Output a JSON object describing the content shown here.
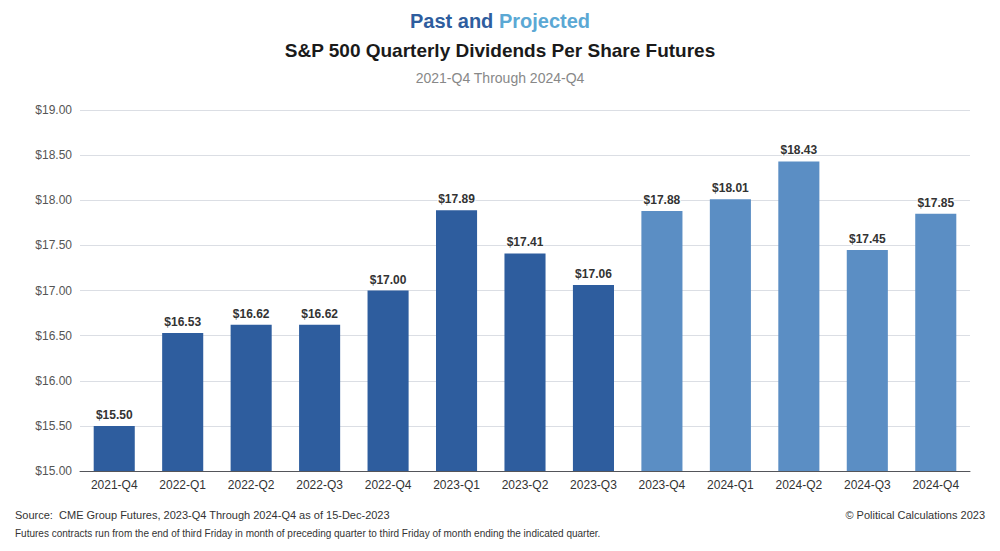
{
  "chart_data": {
    "type": "bar",
    "title": [
      {
        "text": "Past",
        "color": "#2E5D9E"
      },
      {
        "text": " and ",
        "color": "#2E5D9E"
      },
      {
        "text": "Projected",
        "color": "#5BA8D4"
      }
    ],
    "subtitle": [
      "S&P 500 Quarterly Dividends Per Share Futures",
      "2021-Q4 Through 2024-Q4"
    ],
    "annotations": [
      "Source:  CME Group Futures, 2023-Q4 Through 2024-Q4 as of 15-Dec-2023",
      "Futures contracts run from the end of third Friday in month of preceding quarter to third Friday of month ending the indicated quarter.",
      "© Political Calculations 2023"
    ],
    "categories": [
      "2021-Q4",
      "2022-Q1",
      "2022-Q2",
      "2022-Q3",
      "2022-Q4",
      "2023-Q1",
      "2023-Q2",
      "2023-Q3",
      "2023-Q4",
      "2024-Q1",
      "2024-Q2",
      "2024-Q3",
      "2024-Q4"
    ],
    "values": [
      15.5,
      16.53,
      16.62,
      16.62,
      17.0,
      17.89,
      17.41,
      17.06,
      17.88,
      18.01,
      18.43,
      17.45,
      17.85
    ],
    "value_labels": [
      "$15.50",
      "$16.53",
      "$16.62",
      "$16.62",
      "$17.00",
      "$17.89",
      "$17.41",
      "$17.06",
      "$17.88",
      "$18.01",
      "$18.43",
      "$17.45",
      "$17.85"
    ],
    "colors": [
      "#2E5D9E",
      "#2E5D9E",
      "#2E5D9E",
      "#2E5D9E",
      "#2E5D9E",
      "#2E5D9E",
      "#2E5D9E",
      "#2E5D9E",
      "#5B8EC4",
      "#5B8EC4",
      "#5B8EC4",
      "#5B8EC4",
      "#5B8EC4"
    ],
    "data_labels": true,
    "ylim": [
      15.0,
      19.0
    ],
    "yticks": [
      {
        "value": 15.0,
        "label": "$15.00"
      },
      {
        "value": 15.5,
        "label": "$15.50"
      },
      {
        "value": 16.0,
        "label": "$16.00"
      },
      {
        "value": 16.5,
        "label": "$16.50"
      },
      {
        "value": 17.0,
        "label": "$17.00"
      },
      {
        "value": 17.5,
        "label": "$17.50"
      },
      {
        "value": 18.0,
        "label": "$18.00"
      },
      {
        "value": 18.5,
        "label": "$18.50"
      },
      {
        "value": 19.0,
        "label": "$19.00"
      }
    ],
    "grid": true
  }
}
